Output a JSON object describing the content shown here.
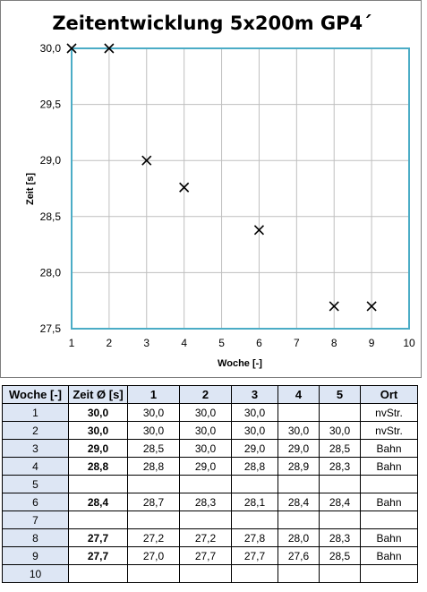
{
  "chart_data": {
    "type": "scatter",
    "title": "Zeitentwicklung 5x200m GP4´",
    "xlabel": "Woche [-]",
    "ylabel": "Zeit [s]",
    "xlim": [
      1,
      10
    ],
    "ylim": [
      27.5,
      30.0
    ],
    "xticks": [
      "1",
      "2",
      "3",
      "4",
      "5",
      "6",
      "7",
      "8",
      "9",
      "10"
    ],
    "yticks": [
      "27,5",
      "28,0",
      "28,5",
      "29,0",
      "29,5",
      "30,0"
    ],
    "grid": true,
    "marker": "x",
    "colors": {
      "plot_border": "#4bacc6",
      "grid": "#bfbfbf",
      "marker": "#000000",
      "header_fill": "#dde6f4"
    },
    "points": [
      {
        "x": 1,
        "y": 30.0
      },
      {
        "x": 2,
        "y": 30.0
      },
      {
        "x": 3,
        "y": 29.0
      },
      {
        "x": 4,
        "y": 28.76
      },
      {
        "x": 6,
        "y": 28.38
      },
      {
        "x": 8,
        "y": 27.7
      },
      {
        "x": 9,
        "y": 27.7
      }
    ]
  },
  "table": {
    "headers": [
      "Woche [-]",
      "Zeit Ø [s]",
      "1",
      "2",
      "3",
      "4",
      "5",
      "Ort"
    ],
    "rows": [
      [
        "1",
        "30,0",
        "30,0",
        "30,0",
        "30,0",
        "",
        "",
        "nvStr."
      ],
      [
        "2",
        "30,0",
        "30,0",
        "30,0",
        "30,0",
        "30,0",
        "30,0",
        "nvStr."
      ],
      [
        "3",
        "29,0",
        "28,5",
        "30,0",
        "29,0",
        "29,0",
        "28,5",
        "Bahn"
      ],
      [
        "4",
        "28,8",
        "28,8",
        "29,0",
        "28,8",
        "28,9",
        "28,3",
        "Bahn"
      ],
      [
        "5",
        "",
        "",
        "",
        "",
        "",
        "",
        ""
      ],
      [
        "6",
        "28,4",
        "28,7",
        "28,3",
        "28,1",
        "28,4",
        "28,4",
        "Bahn"
      ],
      [
        "7",
        "",
        "",
        "",
        "",
        "",
        "",
        ""
      ],
      [
        "8",
        "27,7",
        "27,2",
        "27,2",
        "27,8",
        "28,0",
        "28,3",
        "Bahn"
      ],
      [
        "9",
        "27,7",
        "27,0",
        "27,7",
        "27,7",
        "27,6",
        "28,5",
        "Bahn"
      ],
      [
        "10",
        "",
        "",
        "",
        "",
        "",
        "",
        ""
      ]
    ]
  }
}
